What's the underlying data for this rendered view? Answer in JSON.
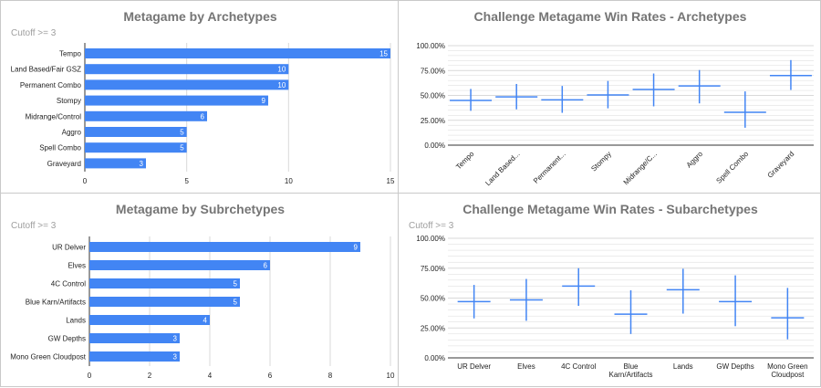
{
  "colors": {
    "bar": "#4285f4",
    "grid": "#d9d9d9",
    "axis": "#333333",
    "title": "#757575",
    "subtitle": "#9e9e9e"
  },
  "chart_data": [
    {
      "type": "bar",
      "orientation": "horizontal",
      "title": "Metagame by Archetypes",
      "subtitle": "Cutoff >= 3",
      "categories": [
        "Tempo",
        "Land Based/Fair GSZ",
        "Permanent Combo",
        "Stompy",
        "Midrange/Control",
        "Aggro",
        "Spell Combo",
        "Graveyard"
      ],
      "values": [
        15,
        10,
        10,
        9,
        6,
        5,
        5,
        3
      ],
      "xlim": [
        0,
        15
      ],
      "xticks": [
        "0",
        "5",
        "10",
        "15"
      ],
      "grid": true
    },
    {
      "type": "scatter",
      "title": "Challenge Metagame Win Rates - Archetypes",
      "subtitle": "",
      "categories": [
        "Tempo",
        "Land Based...",
        "Permanent...",
        "Stompy",
        "Midrange/C...",
        "Aggro",
        "Spell Combo",
        "Graveyard"
      ],
      "values": [
        45.0,
        48.5,
        45.5,
        50.5,
        56.0,
        59.5,
        33.0,
        70.0
      ],
      "low": [
        34.5,
        36.0,
        32.5,
        37.0,
        39.0,
        42.0,
        17.5,
        55.5
      ],
      "high": [
        56.5,
        61.5,
        59.5,
        64.5,
        72.0,
        75.5,
        54.0,
        85.5
      ],
      "ylim": [
        0,
        100
      ],
      "yticks": [
        "0.00%",
        "25.00%",
        "50.00%",
        "75.00%",
        "100.00%"
      ],
      "grid": true
    },
    {
      "type": "bar",
      "orientation": "horizontal",
      "title": "Metagame by Subrchetypes",
      "subtitle": "Cutoff >= 3",
      "categories": [
        "UR Delver",
        "Elves",
        "4C Control",
        "Blue Karn/Artifacts",
        "Lands",
        "GW Depths",
        "Mono Green Cloudpost"
      ],
      "values": [
        9,
        6,
        5,
        5,
        4,
        3,
        3
      ],
      "xlim": [
        0,
        10
      ],
      "xticks": [
        "0",
        "2",
        "4",
        "6",
        "8",
        "10"
      ],
      "grid": true
    },
    {
      "type": "scatter",
      "title": "Challenge Metagame Win Rates - Subarchetypes",
      "subtitle": "Cutoff >= 3",
      "categories": [
        [
          "UR Delver"
        ],
        [
          "Elves"
        ],
        [
          "4C Control"
        ],
        [
          "Blue",
          "Karn/Artifacts"
        ],
        [
          "Lands"
        ],
        [
          "GW Depths"
        ],
        [
          "Mono Green",
          "Cloudpost"
        ]
      ],
      "values": [
        47.0,
        48.5,
        60.0,
        36.5,
        57.0,
        47.0,
        33.5
      ],
      "low": [
        33.0,
        31.0,
        43.5,
        20.0,
        37.0,
        26.5,
        15.5
      ],
      "high": [
        61.0,
        66.0,
        75.0,
        56.5,
        74.5,
        69.0,
        58.5
      ],
      "ylim": [
        0,
        100
      ],
      "yticks": [
        "0.00%",
        "25.00%",
        "50.00%",
        "75.00%",
        "100.00%"
      ],
      "grid": true
    }
  ]
}
